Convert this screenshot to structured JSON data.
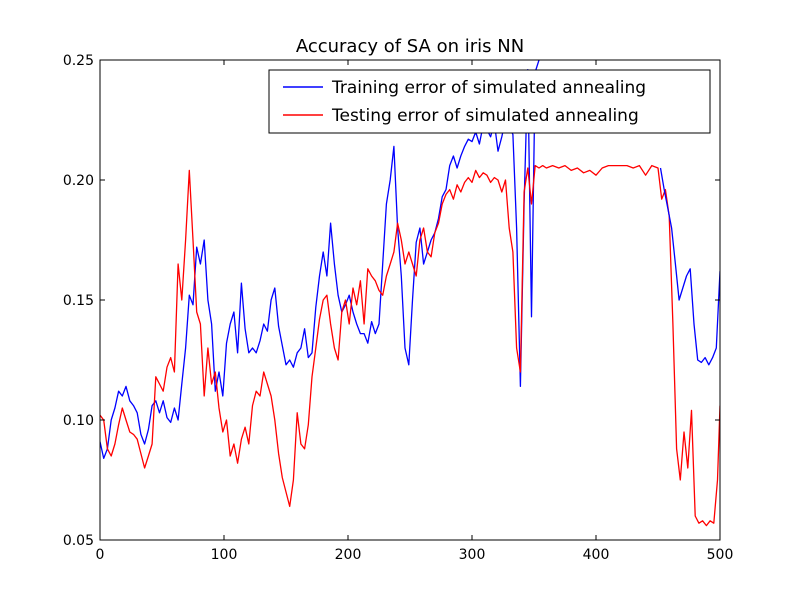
{
  "chart_data": {
    "type": "line",
    "title": "Accuracy of SA on iris NN",
    "xlabel": "",
    "ylabel": "",
    "xlim": [
      0,
      500
    ],
    "ylim": [
      0.05,
      0.25
    ],
    "xticks": [
      0,
      100,
      200,
      300,
      400,
      500
    ],
    "xtick_labels": [
      "0",
      "100",
      "200",
      "300",
      "400",
      "500"
    ],
    "yticks": [
      0.05,
      0.1,
      0.15,
      0.2,
      0.25
    ],
    "ytick_labels": [
      "0.05",
      "0.10",
      "0.15",
      "0.20",
      "0.25"
    ],
    "grid": false,
    "legend_position": "top-right",
    "series": [
      {
        "name": "Training error of simulated annealing",
        "color": "#0000ff",
        "points": [
          [
            0,
            0.091
          ],
          [
            3,
            0.084
          ],
          [
            6,
            0.088
          ],
          [
            9,
            0.1
          ],
          [
            12,
            0.105
          ],
          [
            15,
            0.112
          ],
          [
            18,
            0.11
          ],
          [
            21,
            0.114
          ],
          [
            24,
            0.108
          ],
          [
            27,
            0.106
          ],
          [
            30,
            0.103
          ],
          [
            33,
            0.094
          ],
          [
            36,
            0.09
          ],
          [
            39,
            0.096
          ],
          [
            42,
            0.106
          ],
          [
            45,
            0.108
          ],
          [
            48,
            0.103
          ],
          [
            51,
            0.108
          ],
          [
            54,
            0.101
          ],
          [
            57,
            0.099
          ],
          [
            60,
            0.105
          ],
          [
            63,
            0.1
          ],
          [
            66,
            0.115
          ],
          [
            69,
            0.13
          ],
          [
            72,
            0.152
          ],
          [
            75,
            0.148
          ],
          [
            78,
            0.172
          ],
          [
            81,
            0.165
          ],
          [
            84,
            0.175
          ],
          [
            87,
            0.15
          ],
          [
            90,
            0.14
          ],
          [
            93,
            0.112
          ],
          [
            96,
            0.12
          ],
          [
            99,
            0.11
          ],
          [
            102,
            0.132
          ],
          [
            105,
            0.14
          ],
          [
            108,
            0.145
          ],
          [
            111,
            0.128
          ],
          [
            114,
            0.157
          ],
          [
            117,
            0.138
          ],
          [
            120,
            0.128
          ],
          [
            123,
            0.13
          ],
          [
            126,
            0.128
          ],
          [
            129,
            0.133
          ],
          [
            132,
            0.14
          ],
          [
            135,
            0.137
          ],
          [
            138,
            0.15
          ],
          [
            141,
            0.155
          ],
          [
            144,
            0.139
          ],
          [
            147,
            0.131
          ],
          [
            150,
            0.123
          ],
          [
            153,
            0.125
          ],
          [
            156,
            0.122
          ],
          [
            159,
            0.128
          ],
          [
            162,
            0.13
          ],
          [
            165,
            0.138
          ],
          [
            168,
            0.126
          ],
          [
            171,
            0.128
          ],
          [
            174,
            0.147
          ],
          [
            177,
            0.16
          ],
          [
            180,
            0.17
          ],
          [
            183,
            0.16
          ],
          [
            186,
            0.182
          ],
          [
            189,
            0.165
          ],
          [
            192,
            0.152
          ],
          [
            195,
            0.145
          ],
          [
            198,
            0.148
          ],
          [
            201,
            0.152
          ],
          [
            204,
            0.145
          ],
          [
            207,
            0.14
          ],
          [
            210,
            0.136
          ],
          [
            213,
            0.136
          ],
          [
            216,
            0.132
          ],
          [
            219,
            0.141
          ],
          [
            222,
            0.136
          ],
          [
            225,
            0.14
          ],
          [
            228,
            0.165
          ],
          [
            231,
            0.19
          ],
          [
            234,
            0.2
          ],
          [
            237,
            0.214
          ],
          [
            240,
            0.18
          ],
          [
            243,
            0.16
          ],
          [
            246,
            0.13
          ],
          [
            249,
            0.123
          ],
          [
            252,
            0.15
          ],
          [
            255,
            0.174
          ],
          [
            258,
            0.18
          ],
          [
            261,
            0.165
          ],
          [
            264,
            0.17
          ],
          [
            267,
            0.175
          ],
          [
            270,
            0.178
          ],
          [
            273,
            0.184
          ],
          [
            276,
            0.193
          ],
          [
            279,
            0.196
          ],
          [
            282,
            0.206
          ],
          [
            285,
            0.21
          ],
          [
            288,
            0.205
          ],
          [
            291,
            0.21
          ],
          [
            294,
            0.214
          ],
          [
            297,
            0.217
          ],
          [
            300,
            0.216
          ],
          [
            303,
            0.22
          ],
          [
            306,
            0.215
          ],
          [
            309,
            0.223
          ],
          [
            312,
            0.221
          ],
          [
            315,
            0.218
          ],
          [
            318,
            0.224
          ],
          [
            321,
            0.212
          ],
          [
            324,
            0.218
          ],
          [
            327,
            0.225
          ],
          [
            330,
            0.222
          ],
          [
            333,
            0.219
          ],
          [
            336,
            0.18
          ],
          [
            339,
            0.114
          ],
          [
            342,
            0.19
          ],
          [
            345,
            0.246
          ],
          [
            348,
            0.143
          ],
          [
            351,
            0.245
          ],
          [
            354,
            0.25
          ]
        ]
      },
      {
        "name": "Testing error of simulated annealing",
        "color": "#ff0000",
        "points": [
          [
            0,
            0.102
          ],
          [
            3,
            0.1
          ],
          [
            6,
            0.088
          ],
          [
            9,
            0.085
          ],
          [
            12,
            0.09
          ],
          [
            15,
            0.098
          ],
          [
            18,
            0.105
          ],
          [
            21,
            0.1
          ],
          [
            24,
            0.095
          ],
          [
            27,
            0.094
          ],
          [
            30,
            0.092
          ],
          [
            33,
            0.086
          ],
          [
            36,
            0.08
          ],
          [
            39,
            0.085
          ],
          [
            42,
            0.09
          ],
          [
            45,
            0.118
          ],
          [
            48,
            0.115
          ],
          [
            51,
            0.112
          ],
          [
            54,
            0.122
          ],
          [
            57,
            0.126
          ],
          [
            60,
            0.12
          ],
          [
            63,
            0.165
          ],
          [
            66,
            0.15
          ],
          [
            69,
            0.175
          ],
          [
            72,
            0.204
          ],
          [
            75,
            0.175
          ],
          [
            78,
            0.145
          ],
          [
            81,
            0.14
          ],
          [
            84,
            0.11
          ],
          [
            87,
            0.13
          ],
          [
            90,
            0.115
          ],
          [
            93,
            0.12
          ],
          [
            96,
            0.105
          ],
          [
            99,
            0.095
          ],
          [
            102,
            0.1
          ],
          [
            105,
            0.085
          ],
          [
            108,
            0.09
          ],
          [
            111,
            0.082
          ],
          [
            114,
            0.092
          ],
          [
            117,
            0.097
          ],
          [
            120,
            0.09
          ],
          [
            123,
            0.106
          ],
          [
            126,
            0.112
          ],
          [
            129,
            0.11
          ],
          [
            132,
            0.12
          ],
          [
            135,
            0.115
          ],
          [
            138,
            0.11
          ],
          [
            141,
            0.1
          ],
          [
            144,
            0.086
          ],
          [
            147,
            0.076
          ],
          [
            150,
            0.07
          ],
          [
            153,
            0.064
          ],
          [
            156,
            0.075
          ],
          [
            159,
            0.103
          ],
          [
            162,
            0.09
          ],
          [
            165,
            0.088
          ],
          [
            168,
            0.098
          ],
          [
            171,
            0.118
          ],
          [
            174,
            0.13
          ],
          [
            177,
            0.142
          ],
          [
            180,
            0.15
          ],
          [
            183,
            0.152
          ],
          [
            186,
            0.14
          ],
          [
            189,
            0.13
          ],
          [
            192,
            0.125
          ],
          [
            195,
            0.145
          ],
          [
            198,
            0.15
          ],
          [
            201,
            0.14
          ],
          [
            204,
            0.155
          ],
          [
            207,
            0.148
          ],
          [
            210,
            0.158
          ],
          [
            213,
            0.14
          ],
          [
            216,
            0.163
          ],
          [
            219,
            0.16
          ],
          [
            222,
            0.158
          ],
          [
            225,
            0.154
          ],
          [
            228,
            0.152
          ],
          [
            231,
            0.16
          ],
          [
            234,
            0.165
          ],
          [
            237,
            0.17
          ],
          [
            240,
            0.182
          ],
          [
            243,
            0.175
          ],
          [
            246,
            0.165
          ],
          [
            249,
            0.17
          ],
          [
            252,
            0.165
          ],
          [
            255,
            0.16
          ],
          [
            258,
            0.175
          ],
          [
            261,
            0.18
          ],
          [
            264,
            0.17
          ],
          [
            267,
            0.168
          ],
          [
            270,
            0.178
          ],
          [
            273,
            0.182
          ],
          [
            276,
            0.19
          ],
          [
            279,
            0.194
          ],
          [
            282,
            0.196
          ],
          [
            285,
            0.192
          ],
          [
            288,
            0.198
          ],
          [
            291,
            0.195
          ],
          [
            294,
            0.199
          ],
          [
            297,
            0.201
          ],
          [
            300,
            0.199
          ],
          [
            303,
            0.204
          ],
          [
            306,
            0.201
          ],
          [
            309,
            0.203
          ],
          [
            312,
            0.202
          ],
          [
            315,
            0.199
          ],
          [
            318,
            0.201
          ],
          [
            321,
            0.2
          ],
          [
            324,
            0.195
          ],
          [
            327,
            0.2
          ],
          [
            330,
            0.18
          ],
          [
            333,
            0.17
          ],
          [
            336,
            0.13
          ],
          [
            339,
            0.12
          ],
          [
            342,
            0.195
          ],
          [
            345,
            0.205
          ],
          [
            348,
            0.19
          ],
          [
            351,
            0.206
          ],
          [
            354,
            0.205
          ],
          [
            357,
            0.206
          ],
          [
            360,
            0.205
          ],
          [
            365,
            0.206
          ],
          [
            370,
            0.205
          ],
          [
            375,
            0.206
          ],
          [
            380,
            0.204
          ],
          [
            385,
            0.205
          ],
          [
            390,
            0.203
          ],
          [
            395,
            0.204
          ],
          [
            400,
            0.202
          ],
          [
            405,
            0.205
          ],
          [
            410,
            0.206
          ],
          [
            415,
            0.206
          ],
          [
            420,
            0.206
          ],
          [
            425,
            0.206
          ],
          [
            430,
            0.205
          ],
          [
            435,
            0.206
          ],
          [
            440,
            0.202
          ],
          [
            445,
            0.206
          ],
          [
            450,
            0.205
          ],
          [
            453,
            0.192
          ],
          [
            456,
            0.196
          ],
          [
            459,
            0.185
          ],
          [
            462,
            0.14
          ],
          [
            465,
            0.088
          ],
          [
            468,
            0.075
          ],
          [
            471,
            0.095
          ],
          [
            474,
            0.08
          ],
          [
            477,
            0.104
          ],
          [
            480,
            0.06
          ],
          [
            483,
            0.057
          ],
          [
            486,
            0.058
          ],
          [
            489,
            0.056
          ],
          [
            492,
            0.058
          ],
          [
            495,
            0.057
          ],
          [
            498,
            0.075
          ],
          [
            500,
            0.106
          ]
        ]
      },
      {
        "name": "",
        "color": "#0000ff",
        "points": [
          [
            452,
            0.205
          ],
          [
            455,
            0.196
          ],
          [
            458,
            0.188
          ],
          [
            461,
            0.18
          ],
          [
            464,
            0.165
          ],
          [
            467,
            0.15
          ],
          [
            470,
            0.155
          ],
          [
            473,
            0.16
          ],
          [
            476,
            0.163
          ],
          [
            479,
            0.14
          ],
          [
            482,
            0.125
          ],
          [
            485,
            0.124
          ],
          [
            488,
            0.126
          ],
          [
            491,
            0.123
          ],
          [
            494,
            0.126
          ],
          [
            497,
            0.13
          ],
          [
            500,
            0.162
          ]
        ]
      }
    ]
  }
}
